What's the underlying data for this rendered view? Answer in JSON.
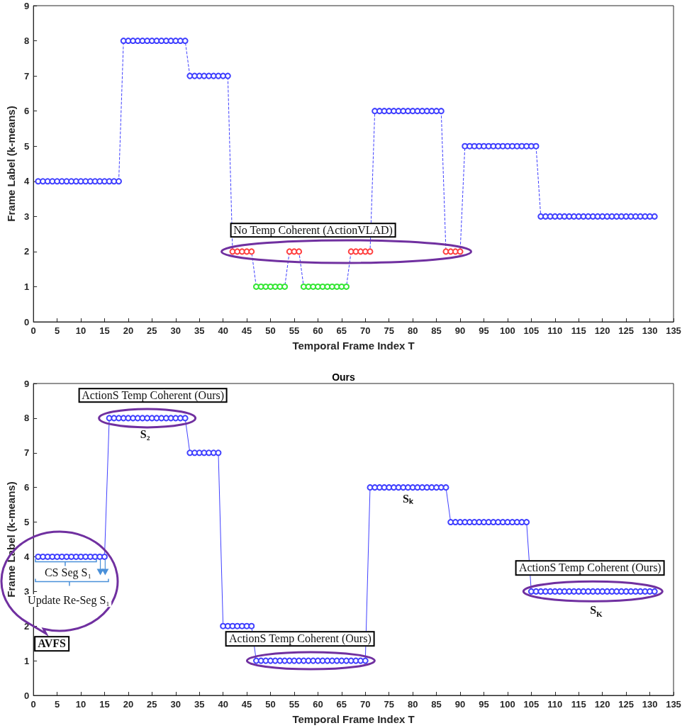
{
  "chart_data": [
    {
      "type": "line",
      "xlabel": "Temporal Frame Index T",
      "ylabel": "Frame Label (k-means)",
      "xlim": [
        0,
        135
      ],
      "ylim": [
        0,
        9
      ],
      "xticks": [
        0,
        5,
        10,
        15,
        20,
        25,
        30,
        35,
        40,
        45,
        50,
        55,
        60,
        65,
        70,
        75,
        80,
        85,
        90,
        95,
        100,
        105,
        110,
        115,
        120,
        125,
        130,
        135
      ],
      "yticks": [
        0,
        1,
        2,
        3,
        4,
        5,
        6,
        7,
        8,
        9
      ],
      "marker": "circle",
      "line_style": "dashed",
      "grid": false,
      "x": [
        1,
        2,
        3,
        4,
        5,
        6,
        7,
        8,
        9,
        10,
        11,
        12,
        13,
        14,
        15,
        16,
        17,
        18,
        19,
        20,
        21,
        22,
        23,
        24,
        25,
        26,
        27,
        28,
        29,
        30,
        31,
        32,
        33,
        34,
        35,
        36,
        37,
        38,
        39,
        40,
        41,
        42,
        43,
        44,
        45,
        46,
        47,
        48,
        49,
        50,
        51,
        52,
        53,
        54,
        55,
        56,
        57,
        58,
        59,
        60,
        61,
        62,
        63,
        64,
        65,
        66,
        67,
        68,
        69,
        70,
        71,
        72,
        73,
        74,
        75,
        76,
        77,
        78,
        79,
        80,
        81,
        82,
        83,
        84,
        85,
        86,
        87,
        88,
        89,
        90,
        91,
        92,
        93,
        94,
        95,
        96,
        97,
        98,
        99,
        100,
        101,
        102,
        103,
        104,
        105,
        106,
        107,
        108,
        109,
        110,
        111,
        112,
        113,
        114,
        115,
        116,
        117,
        118,
        119,
        120,
        121,
        122,
        123,
        124,
        125,
        126,
        127,
        128,
        129,
        130,
        131
      ],
      "series": [
        {
          "color": "#4040ff",
          "values": [
            4,
            4,
            4,
            4,
            4,
            4,
            4,
            4,
            4,
            4,
            4,
            4,
            4,
            4,
            4,
            4,
            4,
            4,
            8,
            8,
            8,
            8,
            8,
            8,
            8,
            8,
            8,
            8,
            8,
            8,
            8,
            8,
            7,
            7,
            7,
            7,
            7,
            7,
            7,
            7,
            7,
            2,
            2,
            2,
            2,
            2,
            1,
            1,
            1,
            1,
            1,
            1,
            1,
            2,
            2,
            2,
            1,
            1,
            1,
            1,
            1,
            1,
            1,
            1,
            1,
            1,
            2,
            2,
            2,
            2,
            2,
            6,
            6,
            6,
            6,
            6,
            6,
            6,
            6,
            6,
            6,
            6,
            6,
            6,
            6,
            6,
            2,
            2,
            2,
            2,
            5,
            5,
            5,
            5,
            5,
            5,
            5,
            5,
            5,
            5,
            5,
            5,
            5,
            5,
            5,
            5,
            3,
            3,
            3,
            3,
            3,
            3,
            3,
            3,
            3,
            3,
            3,
            3,
            3,
            3,
            3,
            3,
            3,
            3,
            3,
            3,
            3,
            3,
            3,
            3,
            3
          ],
          "colors": [
            "#4040ff",
            "#4040ff",
            "#4040ff",
            "#4040ff",
            "#4040ff",
            "#4040ff",
            "#4040ff",
            "#4040ff",
            "#4040ff",
            "#4040ff",
            "#4040ff",
            "#4040ff",
            "#4040ff",
            "#4040ff",
            "#4040ff",
            "#4040ff",
            "#4040ff",
            "#4040ff",
            "#4040ff",
            "#4040ff",
            "#4040ff",
            "#4040ff",
            "#4040ff",
            "#4040ff",
            "#4040ff",
            "#4040ff",
            "#4040ff",
            "#4040ff",
            "#4040ff",
            "#4040ff",
            "#4040ff",
            "#4040ff",
            "#4040ff",
            "#4040ff",
            "#4040ff",
            "#4040ff",
            "#4040ff",
            "#4040ff",
            "#4040ff",
            "#4040ff",
            "#4040ff",
            "#ff4040",
            "#ff4040",
            "#ff4040",
            "#ff4040",
            "#ff4040",
            "#33e633",
            "#33e633",
            "#33e633",
            "#33e633",
            "#33e633",
            "#33e633",
            "#33e633",
            "#ff4040",
            "#ff4040",
            "#ff4040",
            "#33e633",
            "#33e633",
            "#33e633",
            "#33e633",
            "#33e633",
            "#33e633",
            "#33e633",
            "#33e633",
            "#33e633",
            "#33e633",
            "#ff4040",
            "#ff4040",
            "#ff4040",
            "#ff4040",
            "#ff4040",
            "#4040ff",
            "#4040ff",
            "#4040ff",
            "#4040ff",
            "#4040ff",
            "#4040ff",
            "#4040ff",
            "#4040ff",
            "#4040ff",
            "#4040ff",
            "#4040ff",
            "#4040ff",
            "#4040ff",
            "#4040ff",
            "#4040ff",
            "#ff4040",
            "#ff4040",
            "#ff4040",
            "#ff4040",
            "#4040ff",
            "#4040ff",
            "#4040ff",
            "#4040ff",
            "#4040ff",
            "#4040ff",
            "#4040ff",
            "#4040ff",
            "#4040ff",
            "#4040ff",
            "#4040ff",
            "#4040ff",
            "#4040ff",
            "#4040ff",
            "#4040ff",
            "#4040ff",
            "#4040ff",
            "#4040ff",
            "#4040ff",
            "#4040ff",
            "#4040ff",
            "#4040ff",
            "#4040ff",
            "#4040ff",
            "#4040ff",
            "#4040ff",
            "#4040ff",
            "#4040ff",
            "#4040ff",
            "#4040ff",
            "#4040ff",
            "#4040ff",
            "#4040ff",
            "#4040ff",
            "#4040ff",
            "#4040ff",
            "#4040ff",
            "#4040ff",
            "#4040ff",
            "#4040ff",
            "#4040ff"
          ]
        }
      ],
      "annotations": [
        {
          "text": "No Temp Coherent (ActionVLAD)",
          "x": 66,
          "y": 2
        }
      ]
    },
    {
      "type": "line",
      "title": "Ours",
      "xlabel": "Temporal Frame Index T",
      "ylabel": "Frame Label (k-means)",
      "xlim": [
        0,
        135
      ],
      "ylim": [
        0,
        9
      ],
      "xticks": [
        0,
        5,
        10,
        15,
        20,
        25,
        30,
        35,
        40,
        45,
        50,
        55,
        60,
        65,
        70,
        75,
        80,
        85,
        90,
        95,
        100,
        105,
        110,
        115,
        120,
        125,
        130,
        135
      ],
      "yticks": [
        0,
        1,
        2,
        3,
        4,
        5,
        6,
        7,
        8,
        9
      ],
      "marker": "circle",
      "line_style": "solid",
      "grid": false,
      "x": [
        1,
        2,
        3,
        4,
        5,
        6,
        7,
        8,
        9,
        10,
        11,
        12,
        13,
        14,
        15,
        16,
        17,
        18,
        19,
        20,
        21,
        22,
        23,
        24,
        25,
        26,
        27,
        28,
        29,
        30,
        31,
        32,
        33,
        34,
        35,
        36,
        37,
        38,
        39,
        40,
        41,
        42,
        43,
        44,
        45,
        46,
        47,
        48,
        49,
        50,
        51,
        52,
        53,
        54,
        55,
        56,
        57,
        58,
        59,
        60,
        61,
        62,
        63,
        64,
        65,
        66,
        67,
        68,
        69,
        70,
        71,
        72,
        73,
        74,
        75,
        76,
        77,
        78,
        79,
        80,
        81,
        82,
        83,
        84,
        85,
        86,
        87,
        88,
        89,
        90,
        91,
        92,
        93,
        94,
        95,
        96,
        97,
        98,
        99,
        100,
        101,
        102,
        103,
        104,
        105,
        106,
        107,
        108,
        109,
        110,
        111,
        112,
        113,
        114,
        115,
        116,
        117,
        118,
        119,
        120,
        121,
        122,
        123,
        124,
        125,
        126,
        127,
        128,
        129,
        130,
        131
      ],
      "series": [
        {
          "color": "#4040ff",
          "values": [
            4,
            4,
            4,
            4,
            4,
            4,
            4,
            4,
            4,
            4,
            4,
            4,
            4,
            4,
            4,
            8,
            8,
            8,
            8,
            8,
            8,
            8,
            8,
            8,
            8,
            8,
            8,
            8,
            8,
            8,
            8,
            8,
            7,
            7,
            7,
            7,
            7,
            7,
            7,
            2,
            2,
            2,
            2,
            2,
            2,
            2,
            1,
            1,
            1,
            1,
            1,
            1,
            1,
            1,
            1,
            1,
            1,
            1,
            1,
            1,
            1,
            1,
            1,
            1,
            1,
            1,
            1,
            1,
            1,
            1,
            6,
            6,
            6,
            6,
            6,
            6,
            6,
            6,
            6,
            6,
            6,
            6,
            6,
            6,
            6,
            6,
            6,
            5,
            5,
            5,
            5,
            5,
            5,
            5,
            5,
            5,
            5,
            5,
            5,
            5,
            5,
            5,
            5,
            5,
            3,
            3,
            3,
            3,
            3,
            3,
            3,
            3,
            3,
            3,
            3,
            3,
            3,
            3,
            3,
            3,
            3,
            3,
            3,
            3,
            3,
            3,
            3,
            3,
            3,
            3,
            3
          ]
        }
      ],
      "annotations": [
        {
          "text": "ActionS Temp Coherent (Ours)",
          "x": 24,
          "y": 8
        },
        {
          "text": "S₂",
          "x": 24,
          "y": 8
        },
        {
          "text": "ActionS Temp Coherent (Ours)",
          "x": 58.5,
          "y": 1
        },
        {
          "text": "Sₖ",
          "x": 79,
          "y": 6
        },
        {
          "text": "ActionS Temp Coherent (Ours)",
          "x": 118,
          "y": 3
        },
        {
          "text": "S$_{K}$",
          "x": 119,
          "y": 3
        },
        {
          "text": "CS Seg S₁",
          "x": 7,
          "y": 4
        },
        "Update Re-Seg S₁",
        "AVFS"
      ]
    }
  ]
}
